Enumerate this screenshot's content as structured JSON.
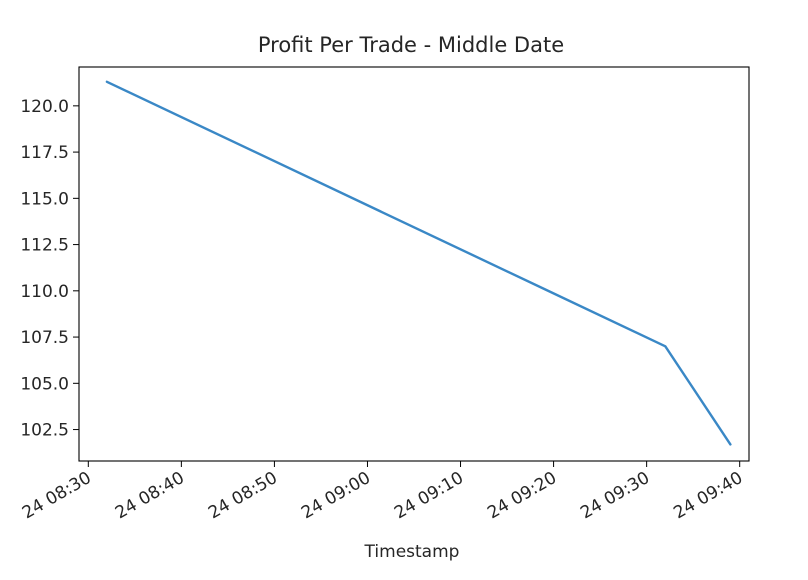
{
  "chart_data": {
    "type": "line",
    "title": "Profit Per Trade - Middle Date",
    "xlabel": "Timestamp",
    "ylabel": "",
    "x_tick_labels": [
      "24 08:30",
      "24 08:40",
      "24 08:50",
      "24 09:00",
      "24 09:10",
      "24 09:20",
      "24 09:30",
      "24 09:40"
    ],
    "y_tick_labels": [
      "102.5",
      "105.0",
      "107.5",
      "110.0",
      "112.5",
      "115.0",
      "117.5",
      "120.0"
    ],
    "x_ticks": [
      "08:30",
      "08:40",
      "08:50",
      "09:00",
      "09:10",
      "09:20",
      "09:30",
      "09:40"
    ],
    "y_ticks": [
      102.5,
      105.0,
      107.5,
      110.0,
      112.5,
      115.0,
      117.5,
      120.0
    ],
    "xlim": [
      "08:29",
      "09:41"
    ],
    "ylim": [
      100.8,
      122.1
    ],
    "grid": false,
    "legend": "none",
    "series": [
      {
        "color": "#3a88c6",
        "x": [
          "08:32",
          "09:19",
          "09:32",
          "09:39"
        ],
        "y": [
          121.3,
          110.1,
          107.0,
          101.7
        ]
      }
    ]
  }
}
